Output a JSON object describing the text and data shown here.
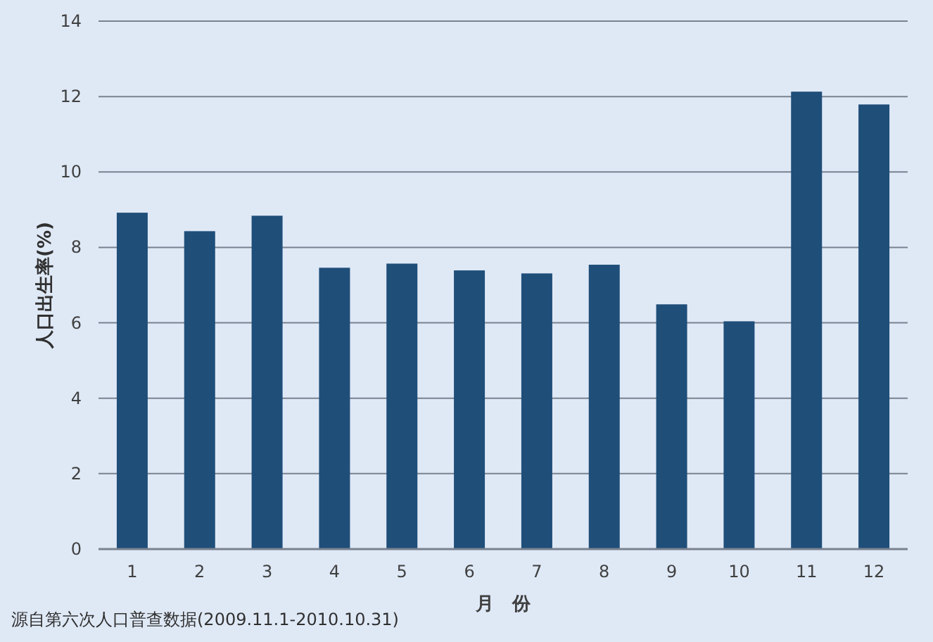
{
  "chart_data": {
    "type": "bar",
    "xlabel": "月　份",
    "ylabel": "人口出生率(%)",
    "annotations": [
      "源自第六次人口普查数据(2009.11.1-2010.10.31)"
    ],
    "categories": [
      "1",
      "2",
      "3",
      "4",
      "5",
      "6",
      "7",
      "8",
      "9",
      "10",
      "11",
      "12"
    ],
    "values": [
      8.92,
      8.43,
      8.84,
      7.46,
      7.57,
      7.39,
      7.31,
      7.54,
      6.49,
      6.04,
      12.13,
      11.79
    ],
    "color": "#1f4e79",
    "ylim": [
      0,
      14
    ],
    "yticks": [
      0,
      2,
      4,
      6,
      8,
      10,
      12,
      14
    ],
    "grid": "y"
  }
}
